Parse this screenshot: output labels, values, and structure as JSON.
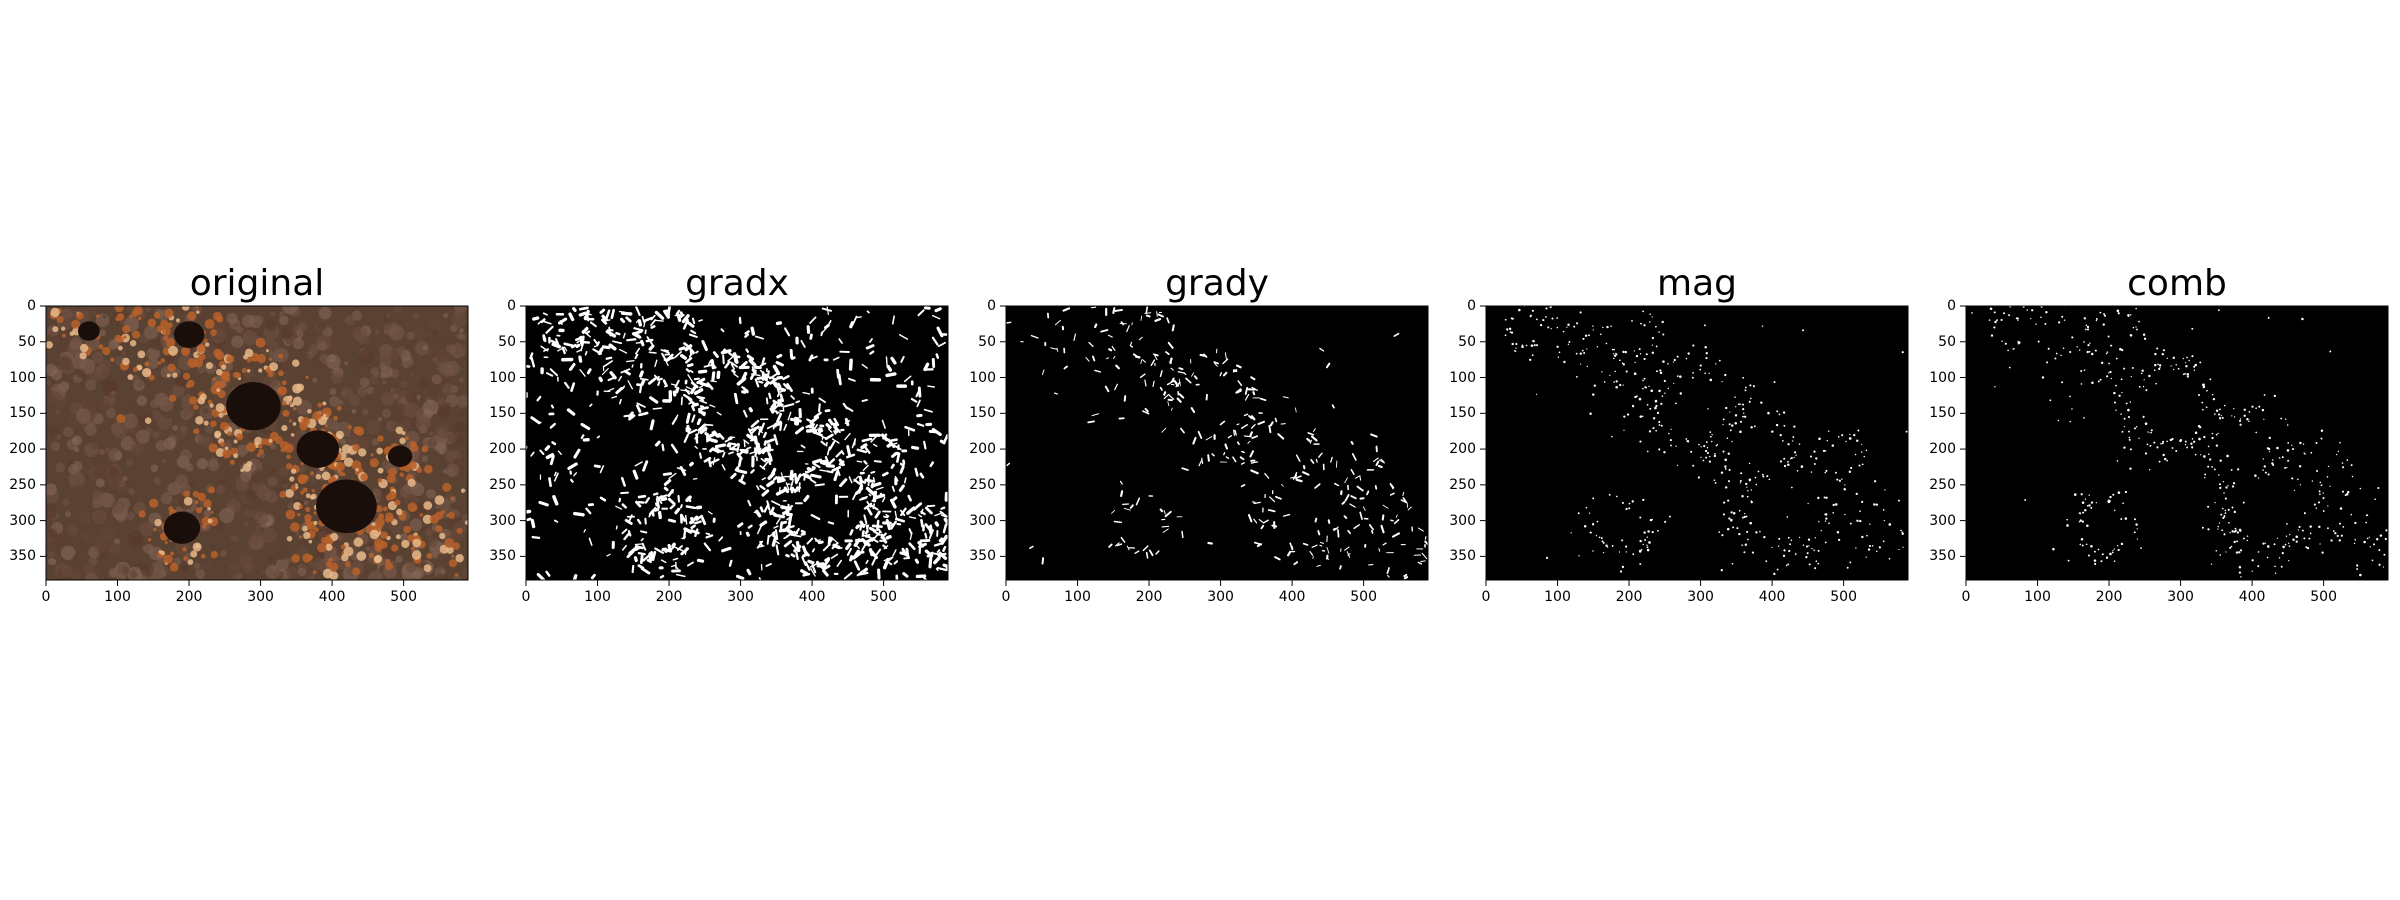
{
  "panels": [
    {
      "title": "original",
      "kind": "photo-rust-texture"
    },
    {
      "title": "gradx",
      "kind": "binary-edges-dense"
    },
    {
      "title": "grady",
      "kind": "binary-edges-sparse"
    },
    {
      "title": "mag",
      "kind": "binary-edges-dotted"
    },
    {
      "title": "comb",
      "kind": "binary-edges-dotted"
    }
  ],
  "axes": {
    "x_ticks": [
      "0",
      "100",
      "200",
      "300",
      "400",
      "500"
    ],
    "y_ticks": [
      "0",
      "50",
      "100",
      "150",
      "200",
      "250",
      "300",
      "350"
    ],
    "x_range": [
      0,
      590
    ],
    "y_range": [
      0,
      383
    ]
  },
  "colors": {
    "background": "#ffffff",
    "image_black": "#000000",
    "edge_white": "#ffffff",
    "rust_dark": "#5a4233",
    "rust_orange": "#b8602a",
    "rust_light": "#e8b88a",
    "hole_dark": "#1a0e0a"
  }
}
